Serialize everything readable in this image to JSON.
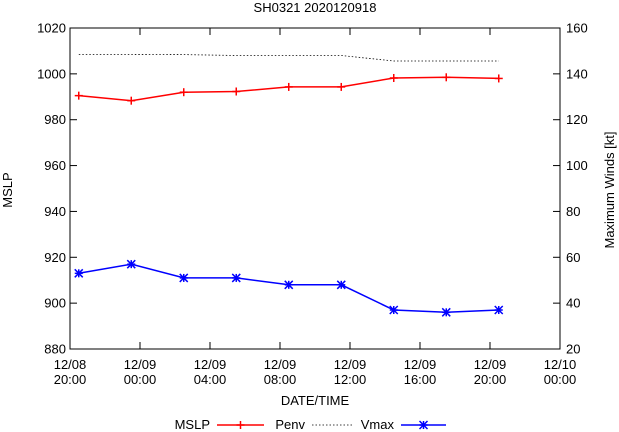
{
  "chart_data": {
    "type": "line",
    "title": "SH0321 2020120918",
    "xlabel": "DATE/TIME",
    "ylabel_left": "MSLP",
    "ylabel_right": "Maximum Winds [kt]",
    "x_hours_range": [
      0,
      28
    ],
    "ylim_left": [
      880,
      1020
    ],
    "ylim_right": [
      20,
      160
    ],
    "x_ticks": [
      {
        "h": 0,
        "line1": "12/08",
        "line2": "20:00"
      },
      {
        "h": 4,
        "line1": "12/09",
        "line2": "00:00"
      },
      {
        "h": 8,
        "line1": "12/09",
        "line2": "04:00"
      },
      {
        "h": 12,
        "line1": "12/09",
        "line2": "08:00"
      },
      {
        "h": 16,
        "line1": "12/09",
        "line2": "12:00"
      },
      {
        "h": 20,
        "line1": "12/09",
        "line2": "16:00"
      },
      {
        "h": 24,
        "line1": "12/09",
        "line2": "20:00"
      },
      {
        "h": 28,
        "line1": "12/10",
        "line2": "00:00"
      }
    ],
    "y_ticks_left": [
      880,
      900,
      920,
      940,
      960,
      980,
      1000,
      1020
    ],
    "y_ticks_right": [
      20,
      40,
      60,
      80,
      100,
      120,
      140,
      160
    ],
    "legend_labels": [
      "MSLP",
      "Penv",
      "Vmax"
    ],
    "series": [
      {
        "name": "MSLP",
        "axis": "left",
        "color": "#ff0000",
        "marker": "plus",
        "x": [
          0.5,
          3.5,
          6.5,
          9.5,
          12.5,
          15.5,
          18.5,
          21.5,
          24.5
        ],
        "values": [
          990.5,
          988.3,
          992.0,
          992.3,
          994.3,
          994.3,
          998.2,
          998.5,
          998.0
        ]
      },
      {
        "name": "Penv",
        "axis": "left",
        "color": "#000000",
        "marker": "none",
        "dashed": true,
        "x": [
          0.5,
          3.5,
          6.5,
          9.5,
          12.5,
          15.5,
          18.5,
          21.5,
          24.5
        ],
        "values": [
          1008.5,
          1008.5,
          1008.4,
          1008.0,
          1008.0,
          1008.0,
          1005.6,
          1005.6,
          1005.6
        ]
      },
      {
        "name": "Vmax",
        "axis": "right",
        "color": "#0000ff",
        "marker": "star",
        "x": [
          0.5,
          3.5,
          6.5,
          9.5,
          12.5,
          15.5,
          18.5,
          21.5,
          24.5
        ],
        "values": [
          53,
          57,
          51,
          51,
          48,
          48,
          37,
          36,
          37
        ]
      }
    ]
  }
}
